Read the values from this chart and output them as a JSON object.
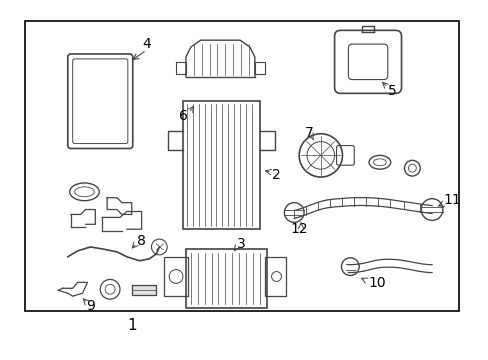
{
  "bg_color": "#ffffff",
  "border_color": "#000000",
  "line_color": "#444444",
  "text_color": "#000000",
  "fig_width": 4.89,
  "fig_height": 3.6,
  "dpi": 100,
  "fontsize_labels": 9
}
